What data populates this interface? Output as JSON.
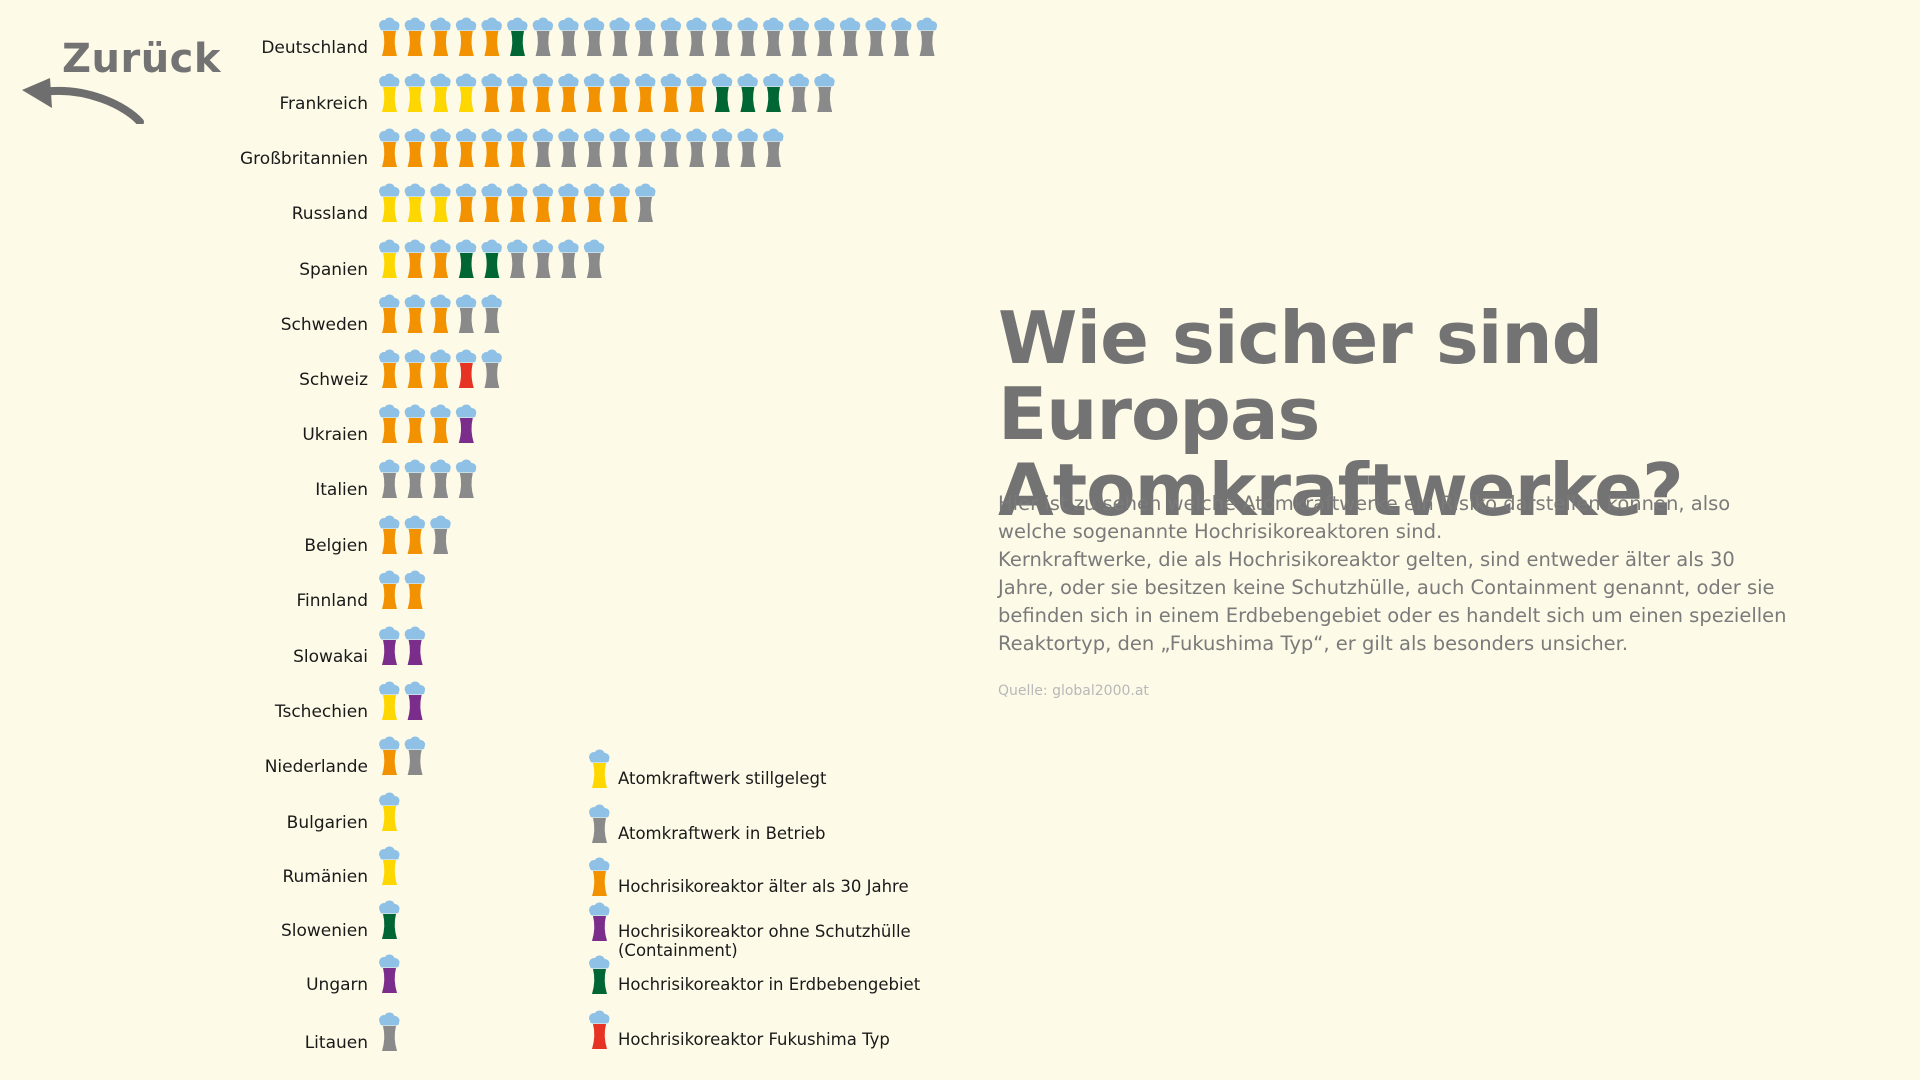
{
  "nav": {
    "back_label": "Zurück"
  },
  "heading": {
    "line1": "Wie sicher sind Europas",
    "line2": "Atomkraftwerke?"
  },
  "description": {
    "paragraph1": "Hier ist zu sehen welche Atomkraftwerke ein Risiko darstellen können, also welche sogenannte Hochrisikoreaktoren sind.",
    "paragraph2": "Kernkraftwerke, die als Hochrisikoreaktor gelten, sind entweder älter als 30 Jahre, oder sie besitzen keine Schutzhülle, auch Containment genannt, oder sie befinden sich in einem Erdbebengebiet oder es handelt sich um einen speziellen Reaktortyp, den „Fukushima Typ“, er gilt als besonders unsicher."
  },
  "source": "Quelle: global2000.at",
  "colors": {
    "background": "#fefae8",
    "cloud": "#8fc1e6",
    "stillgelegt": "#ffd700",
    "betrieb": "#8a8a8a",
    "alt": "#f39200",
    "ohne_schutz": "#7b2d8b",
    "erdbeben": "#006634",
    "fukushima": "#e63323"
  },
  "chart_data": {
    "type": "pictogram",
    "legend": [
      {
        "key": "stillgelegt",
        "label": "Atomkraftwerk stillgelegt"
      },
      {
        "key": "betrieb",
        "label": "Atomkraftwerk in Betrieb"
      },
      {
        "key": "alt",
        "label": "Hochrisikoreaktor älter als 30 Jahre"
      },
      {
        "key": "ohne_schutz",
        "label": "Hochrisikoreaktor ohne Schutzhülle (Containment)"
      },
      {
        "key": "erdbeben",
        "label": "Hochrisikoreaktor in Erdbebengebiet"
      },
      {
        "key": "fukushima",
        "label": "Hochrisikoreaktor Fukushima Typ"
      }
    ],
    "countries": [
      {
        "name": "Deutschland",
        "reactors": [
          "alt",
          "alt",
          "alt",
          "alt",
          "alt",
          "erdbeben",
          "betrieb",
          "betrieb",
          "betrieb",
          "betrieb",
          "betrieb",
          "betrieb",
          "betrieb",
          "betrieb",
          "betrieb",
          "betrieb",
          "betrieb",
          "betrieb",
          "betrieb",
          "betrieb",
          "betrieb",
          "betrieb"
        ]
      },
      {
        "name": "Frankreich",
        "reactors": [
          "stillgelegt",
          "stillgelegt",
          "stillgelegt",
          "stillgelegt",
          "alt",
          "alt",
          "alt",
          "alt",
          "alt",
          "alt",
          "alt",
          "alt",
          "alt",
          "erdbeben",
          "erdbeben",
          "erdbeben",
          "betrieb",
          "betrieb"
        ]
      },
      {
        "name": "Großbritannien",
        "reactors": [
          "alt",
          "alt",
          "alt",
          "alt",
          "alt",
          "alt",
          "betrieb",
          "betrieb",
          "betrieb",
          "betrieb",
          "betrieb",
          "betrieb",
          "betrieb",
          "betrieb",
          "betrieb",
          "betrieb"
        ]
      },
      {
        "name": "Russland",
        "reactors": [
          "stillgelegt",
          "stillgelegt",
          "stillgelegt",
          "alt",
          "alt",
          "alt",
          "alt",
          "alt",
          "alt",
          "alt",
          "betrieb"
        ]
      },
      {
        "name": "Spanien",
        "reactors": [
          "stillgelegt",
          "alt",
          "alt",
          "erdbeben",
          "erdbeben",
          "betrieb",
          "betrieb",
          "betrieb",
          "betrieb"
        ]
      },
      {
        "name": "Schweden",
        "reactors": [
          "alt",
          "alt",
          "alt",
          "betrieb",
          "betrieb"
        ]
      },
      {
        "name": "Schweiz",
        "reactors": [
          "alt",
          "alt",
          "alt",
          "fukushima",
          "betrieb"
        ]
      },
      {
        "name": "Ukraien",
        "reactors": [
          "alt",
          "alt",
          "alt",
          "ohne_schutz"
        ]
      },
      {
        "name": "Italien",
        "reactors": [
          "betrieb",
          "betrieb",
          "betrieb",
          "betrieb"
        ]
      },
      {
        "name": "Belgien",
        "reactors": [
          "alt",
          "alt",
          "betrieb"
        ]
      },
      {
        "name": "Finnland",
        "reactors": [
          "alt",
          "alt"
        ]
      },
      {
        "name": "Slowakai",
        "reactors": [
          "ohne_schutz",
          "ohne_schutz"
        ]
      },
      {
        "name": "Tschechien",
        "reactors": [
          "stillgelegt",
          "ohne_schutz"
        ]
      },
      {
        "name": "Niederlande",
        "reactors": [
          "alt",
          "betrieb"
        ]
      },
      {
        "name": "Bulgarien",
        "reactors": [
          "stillgelegt"
        ]
      },
      {
        "name": "Rumänien",
        "reactors": [
          "stillgelegt"
        ]
      },
      {
        "name": "Slowenien",
        "reactors": [
          "erdbeben"
        ]
      },
      {
        "name": "Ungarn",
        "reactors": [
          "ohne_schutz"
        ]
      },
      {
        "name": "Litauen",
        "reactors": [
          "betrieb"
        ]
      }
    ]
  }
}
